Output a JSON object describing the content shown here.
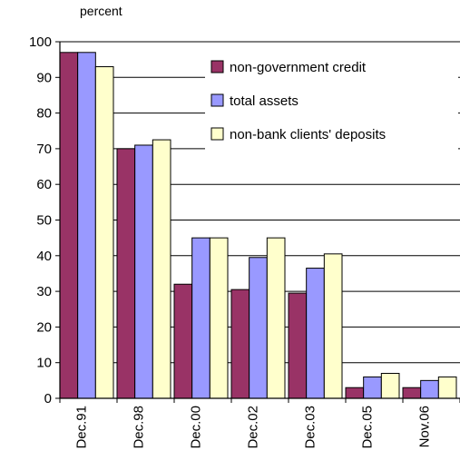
{
  "chart_data": {
    "type": "bar",
    "title": "",
    "unit_label": "percent",
    "xlabel": "",
    "ylabel": "",
    "ylim": [
      0,
      100
    ],
    "yticks": [
      0,
      10,
      20,
      30,
      40,
      50,
      60,
      70,
      80,
      90,
      100
    ],
    "grid": true,
    "legend_position": "top-right",
    "categories": [
      "Dec.91",
      "Dec.98",
      "Dec.00",
      "Dec.02",
      "Dec.03",
      "Dec.05",
      "Nov.06"
    ],
    "series": [
      {
        "name": "non-government credit",
        "color": "#993366",
        "values": [
          97,
          70,
          32,
          30.5,
          29.5,
          3,
          3
        ]
      },
      {
        "name": "total assets",
        "color": "#9999ff",
        "values": [
          97,
          71,
          45,
          39.5,
          36.5,
          6,
          5
        ]
      },
      {
        "name": "non-bank clients' deposits",
        "color": "#ffffcc",
        "values": [
          93,
          72.5,
          45,
          45,
          40.5,
          7,
          6
        ]
      }
    ]
  }
}
